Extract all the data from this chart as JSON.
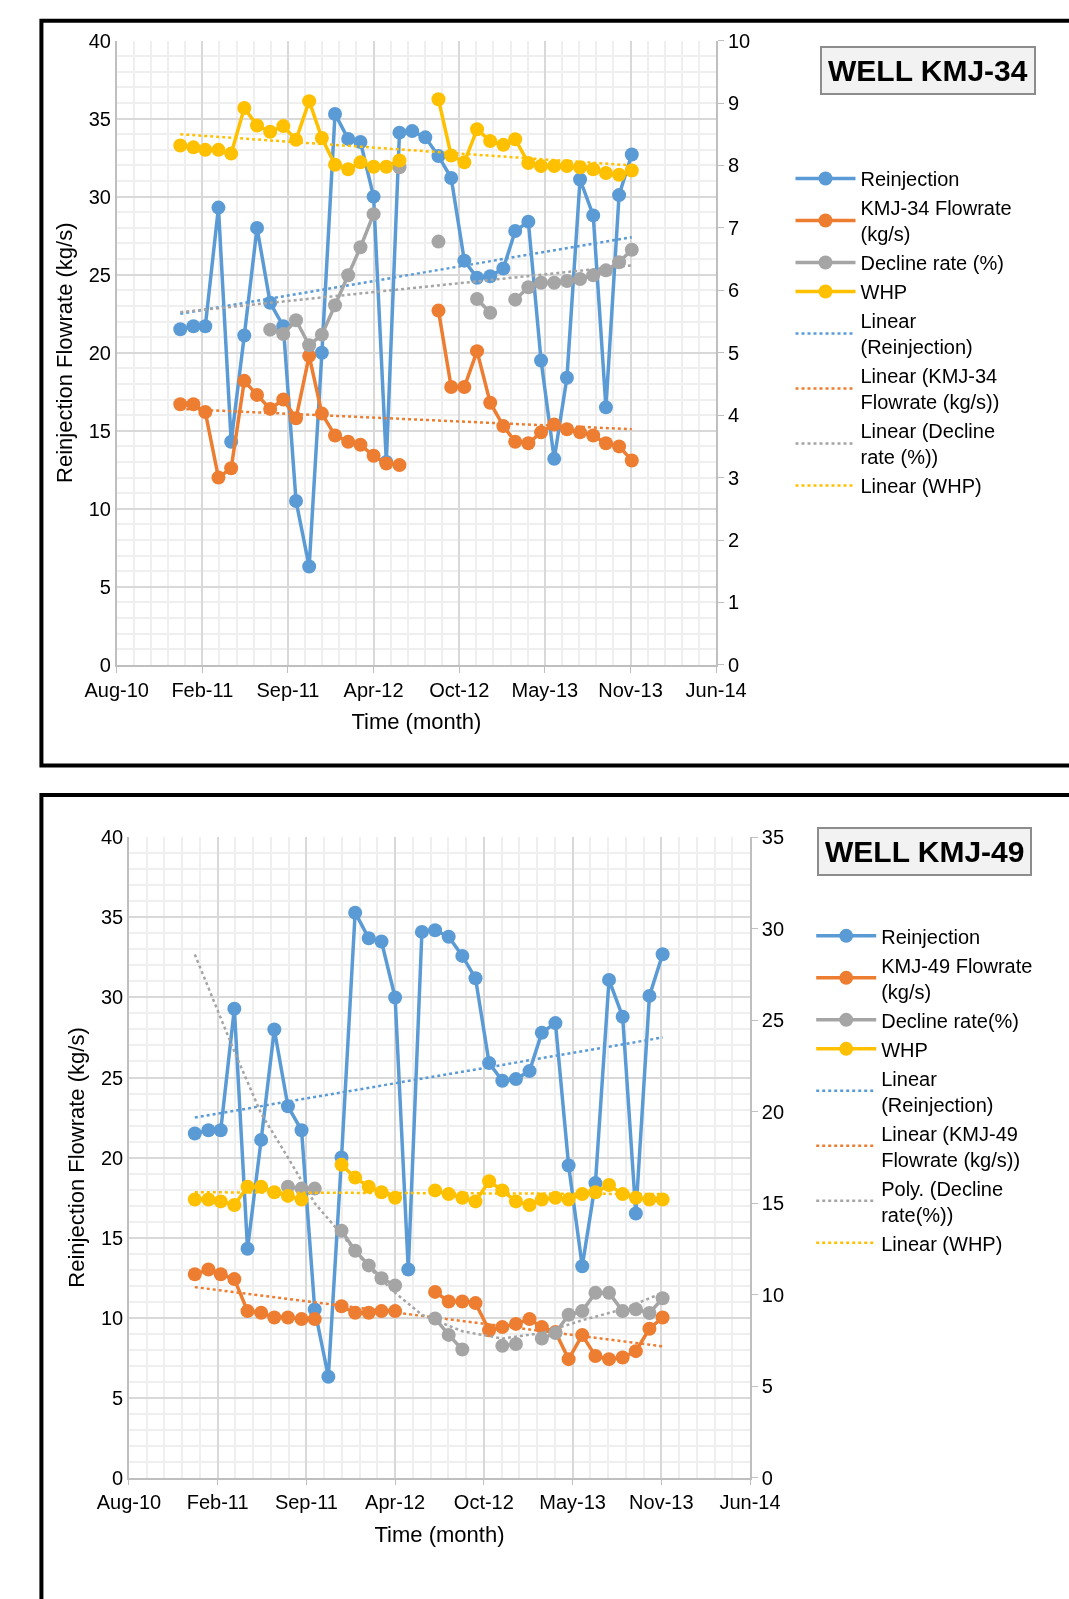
{
  "chart_data": [
    {
      "type": "line",
      "annotations": [
        "WELL KMJ-34"
      ],
      "xlabel": "Time (month)",
      "ylabel": "Reinjection Flowrate (kg/s)",
      "x": [
        "2011-01",
        "2011-02",
        "2011-03",
        "2011-04",
        "2011-05",
        "2011-06",
        "2011-07",
        "2011-08",
        "2011-09",
        "2011-10",
        "2011-11",
        "2011-12",
        "2012-01",
        "2012-02",
        "2012-03",
        "2012-04",
        "2012-05",
        "2012-06",
        "2012-07",
        "2012-08",
        "2012-09",
        "2012-10",
        "2012-11",
        "2012-12",
        "2013-01",
        "2013-02",
        "2013-03",
        "2013-04",
        "2013-05",
        "2013-06",
        "2013-07",
        "2013-08",
        "2013-09",
        "2013-10",
        "2013-11",
        "2013-12"
      ],
      "xlim": [
        "2010-08-04",
        "2014-06-18"
      ],
      "xticks": [
        {
          "value": "2010-08-04",
          "label": "Aug-10"
        },
        {
          "value": "2011-02-22",
          "label": "Feb-11"
        },
        {
          "value": "2011-09-12",
          "label": "Sep-11"
        },
        {
          "value": "2012-04-01",
          "label": "Apr-12"
        },
        {
          "value": "2012-10-20",
          "label": "Oct-12"
        },
        {
          "value": "2013-05-10",
          "label": "May-13"
        },
        {
          "value": "2013-11-28",
          "label": "Nov-13"
        },
        {
          "value": "2014-06-18",
          "label": "Jun-14"
        }
      ],
      "ylim": [
        0,
        40
      ],
      "yticks": [
        0,
        5,
        10,
        15,
        20,
        25,
        30,
        35,
        40
      ],
      "y2lim": [
        0,
        10
      ],
      "y2ticks": [
        0,
        1,
        2,
        3,
        4,
        5,
        6,
        7,
        8,
        9,
        10
      ],
      "grid": true,
      "legend": "right",
      "marker": "circle",
      "series": [
        {
          "name": "Reinjection",
          "color": "#5b9bd5",
          "values": [
            21.5,
            21.7,
            21.7,
            29.3,
            14.3,
            21.1,
            28.0,
            23.2,
            21.7,
            10.5,
            6.3,
            20.0,
            35.3,
            33.7,
            33.5,
            30.0,
            13.0,
            34.1,
            34.2,
            33.8,
            32.6,
            31.2,
            25.9,
            24.8,
            24.9,
            25.4,
            27.8,
            28.4,
            19.5,
            13.2,
            18.4,
            31.1,
            28.8,
            16.5,
            30.1,
            32.7
          ]
        },
        {
          "name": "KMJ-34 Flowrate (kg/s)",
          "color": "#ed7d31",
          "values": [
            16.7,
            16.7,
            16.2,
            12.0,
            12.6,
            18.2,
            17.3,
            16.4,
            17.0,
            15.8,
            19.8,
            16.1,
            14.7,
            14.3,
            14.1,
            13.4,
            12.9,
            12.8,
            null,
            null,
            22.7,
            17.8,
            17.8,
            20.1,
            16.8,
            15.3,
            14.3,
            14.2,
            14.9,
            15.4,
            15.1,
            14.9,
            14.7,
            14.2,
            14.0,
            13.1
          ]
        },
        {
          "name": "Decline rate (%)",
          "color": "#a5a5a5",
          "axis": "y2",
          "values": [
            null,
            null,
            null,
            null,
            null,
            null,
            null,
            5.37,
            5.3,
            5.52,
            5.12,
            5.29,
            5.76,
            6.24,
            6.69,
            7.22,
            null,
            7.97,
            null,
            null,
            6.78,
            null,
            null,
            5.86,
            5.64,
            null,
            5.85,
            6.05,
            6.12,
            6.12,
            6.15,
            6.18,
            6.24,
            6.32,
            6.45,
            6.65
          ]
        },
        {
          "name": "WHP",
          "color": "#ffc000",
          "axis": "y2",
          "values": [
            8.32,
            8.29,
            8.25,
            8.25,
            8.19,
            8.92,
            8.64,
            8.54,
            8.63,
            8.41,
            9.03,
            8.44,
            8.01,
            7.94,
            8.05,
            7.98,
            7.98,
            8.08,
            null,
            null,
            9.06,
            8.16,
            8.05,
            8.58,
            8.39,
            8.33,
            8.42,
            8.04,
            7.99,
            7.99,
            7.99,
            7.97,
            7.94,
            7.88,
            7.85,
            7.92
          ]
        },
        {
          "name": "Linear (Reinjection)",
          "color": "#5b9bd5",
          "type": "line",
          "line_style": "dotted",
          "marker": "none",
          "x": [
            "2011-01",
            "2013-12"
          ],
          "values": [
            22.5,
            27.4
          ]
        },
        {
          "name": "Linear (KMJ-34 Flowrate (kg/s))",
          "color": "#ed7d31",
          "type": "line",
          "line_style": "dotted",
          "marker": "none",
          "x": [
            "2011-01",
            "2013-12"
          ],
          "values": [
            16.4,
            15.1
          ]
        },
        {
          "name": "Linear (Decline rate (%))",
          "color": "#a5a5a5",
          "type": "line",
          "line_style": "dotted",
          "marker": "none",
          "axis": "y2",
          "x": [
            "2011-01",
            "2013-12"
          ],
          "values": [
            5.65,
            6.4
          ]
        },
        {
          "name": "Linear (WHP)",
          "color": "#ffc000",
          "type": "line",
          "line_style": "dotted",
          "marker": "none",
          "axis": "y2",
          "x": [
            "2011-01",
            "2013-12"
          ],
          "values": [
            8.5,
            8.0
          ]
        }
      ]
    },
    {
      "type": "line",
      "annotations": [
        "WELL KMJ-49"
      ],
      "xlabel": "Time (month)",
      "ylabel": "Reinjection Flowrate (kg/s)",
      "x": [
        "2011-01",
        "2011-02",
        "2011-03",
        "2011-04",
        "2011-05",
        "2011-06",
        "2011-07",
        "2011-08",
        "2011-09",
        "2011-10",
        "2011-11",
        "2011-12",
        "2012-01",
        "2012-02",
        "2012-03",
        "2012-04",
        "2012-05",
        "2012-06",
        "2012-07",
        "2012-08",
        "2012-09",
        "2012-10",
        "2012-11",
        "2012-12",
        "2013-01",
        "2013-02",
        "2013-03",
        "2013-04",
        "2013-05",
        "2013-06",
        "2013-07",
        "2013-08",
        "2013-09",
        "2013-10",
        "2013-11",
        "2013-12"
      ],
      "xlim": [
        "2010-08-04",
        "2014-06-18"
      ],
      "xticks": [
        {
          "value": "2010-08-04",
          "label": "Aug-10"
        },
        {
          "value": "2011-02-22",
          "label": "Feb-11"
        },
        {
          "value": "2011-09-12",
          "label": "Sep-11"
        },
        {
          "value": "2012-04-01",
          "label": "Apr-12"
        },
        {
          "value": "2012-10-20",
          "label": "Oct-12"
        },
        {
          "value": "2013-05-10",
          "label": "May-13"
        },
        {
          "value": "2013-11-28",
          "label": "Nov-13"
        },
        {
          "value": "2014-06-18",
          "label": "Jun-14"
        }
      ],
      "ylim": [
        0,
        40
      ],
      "yticks": [
        0,
        5,
        10,
        15,
        20,
        25,
        30,
        35,
        40
      ],
      "y2lim": [
        0,
        35
      ],
      "y2ticks": [
        0,
        5,
        10,
        15,
        20,
        25,
        30,
        35
      ],
      "grid": true,
      "legend": "right",
      "marker": "circle",
      "series": [
        {
          "name": "Reinjection",
          "color": "#5b9bd5",
          "values": [
            21.5,
            21.7,
            21.7,
            29.3,
            14.3,
            21.1,
            28.0,
            23.2,
            21.7,
            10.5,
            6.3,
            20.0,
            35.3,
            33.7,
            33.5,
            30.0,
            13.0,
            34.1,
            34.2,
            33.8,
            32.6,
            31.2,
            25.9,
            24.8,
            24.9,
            25.4,
            27.8,
            28.4,
            19.5,
            13.2,
            18.4,
            31.1,
            28.8,
            16.5,
            30.1,
            32.7
          ]
        },
        {
          "name": "KMJ-49 Flowrate (kg/s)",
          "color": "#ed7d31",
          "values": [
            12.7,
            13.0,
            12.7,
            12.4,
            10.4,
            10.3,
            10.0,
            10.0,
            9.9,
            9.9,
            null,
            10.7,
            10.3,
            10.3,
            10.4,
            10.4,
            null,
            null,
            11.6,
            11.0,
            11.0,
            10.9,
            9.2,
            9.4,
            9.6,
            9.9,
            9.4,
            9.1,
            7.4,
            8.9,
            7.6,
            7.4,
            7.5,
            7.9,
            9.3,
            10.0
          ]
        },
        {
          "name": "Decline rate(%)",
          "color": "#a5a5a5",
          "axis": "y2",
          "values": [
            null,
            null,
            null,
            null,
            null,
            null,
            null,
            15.9,
            15.8,
            15.8,
            null,
            13.5,
            12.4,
            11.6,
            10.9,
            10.5,
            null,
            null,
            8.7,
            7.8,
            7.0,
            null,
            null,
            7.2,
            7.3,
            null,
            7.6,
            7.9,
            8.9,
            9.1,
            10.1,
            10.1,
            9.1,
            9.2,
            9.0,
            9.8
          ]
        },
        {
          "name": "WHP",
          "color": "#ffc000",
          "axis": "y2",
          "values": [
            15.2,
            15.2,
            15.1,
            14.9,
            15.9,
            15.9,
            15.6,
            15.4,
            15.2,
            null,
            null,
            17.1,
            16.4,
            15.9,
            15.6,
            15.3,
            null,
            null,
            15.7,
            15.5,
            15.3,
            15.1,
            16.2,
            15.7,
            15.1,
            14.9,
            15.2,
            15.3,
            15.2,
            15.5,
            15.6,
            16.0,
            15.5,
            15.3,
            15.2,
            15.2
          ]
        },
        {
          "name": "Linear (Reinjection)",
          "color": "#5b9bd5",
          "type": "line",
          "line_style": "dotted",
          "marker": "none",
          "x": [
            "2011-01",
            "2013-12"
          ],
          "values": [
            22.5,
            27.5
          ]
        },
        {
          "name": "Linear (KMJ-49 Flowrate (kg/s))",
          "color": "#ed7d31",
          "type": "line",
          "line_style": "dotted",
          "marker": "none",
          "x": [
            "2011-01",
            "2013-12"
          ],
          "values": [
            11.9,
            8.2
          ]
        },
        {
          "name": "Poly. (Decline rate(%))",
          "color": "#a5a5a5",
          "type": "line",
          "line_style": "dotted",
          "marker": "none",
          "axis": "y2",
          "x": [
            "2011-01",
            "2011-04",
            "2011-06",
            "2011-08",
            "2011-10",
            "2011-12",
            "2012-02",
            "2012-04",
            "2012-06",
            "2012-09",
            "2012-12",
            "2013-03",
            "2013-06",
            "2013-09",
            "2013-12"
          ],
          "values": [
            28.6,
            23.3,
            19.9,
            17.5,
            15.0,
            13.3,
            11.5,
            10.1,
            8.9,
            8.0,
            7.6,
            7.9,
            8.6,
            9.2,
            10.1
          ]
        },
        {
          "name": "Linear (WHP)",
          "color": "#ffc000",
          "type": "line",
          "line_style": "dotted",
          "marker": "none",
          "axis": "y2",
          "x": [
            "2011-01",
            "2013-12"
          ],
          "values": [
            15.6,
            15.5
          ]
        }
      ]
    }
  ]
}
